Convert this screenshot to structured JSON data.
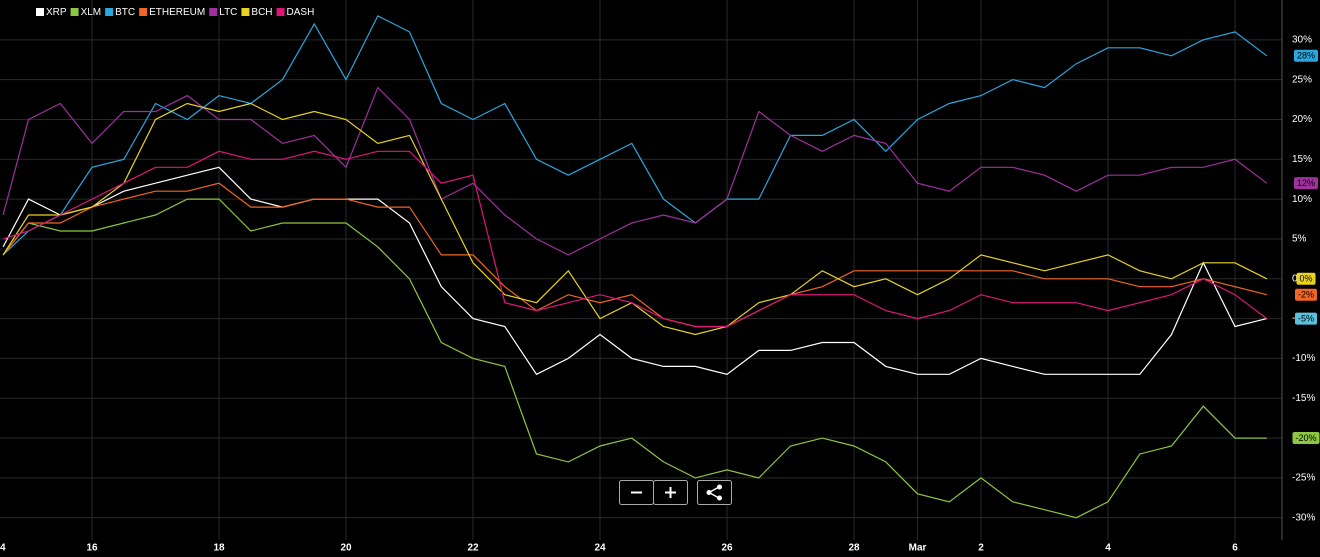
{
  "chart_data": {
    "type": "line",
    "x": [
      14.6,
      15,
      15.5,
      16,
      16.5,
      17,
      17.5,
      18,
      18.5,
      19,
      19.5,
      20,
      20.5,
      21,
      21.5,
      22,
      22.5,
      23,
      23.5,
      24,
      24.5,
      25,
      25.5,
      26,
      26.5,
      27,
      27.5,
      28,
      28.5,
      29,
      29.5,
      30,
      30.5,
      31,
      31.5,
      32,
      32.5,
      33,
      33.5,
      34,
      34.5
    ],
    "series": [
      {
        "name": "XRP",
        "color": "#ffffff",
        "end_label": "-5%",
        "end_label_color": "#5bc0de",
        "values": [
          4,
          10,
          8,
          9,
          11,
          12,
          13,
          14,
          10,
          9,
          10,
          10,
          10,
          7,
          -1,
          -5,
          -6,
          -12,
          -10,
          -7,
          -10,
          -11,
          -11,
          -12,
          -9,
          -9,
          -8,
          -8,
          -11,
          -12,
          -12,
          -10,
          -11,
          -12,
          -12,
          -12,
          -12,
          -7,
          2,
          -6,
          -5
        ]
      },
      {
        "name": "XLM",
        "color": "#8dc63f",
        "end_label": "-20%",
        "end_label_color": "#8dc63f",
        "values": [
          3,
          7,
          6,
          6,
          7,
          8,
          10,
          10,
          6,
          7,
          7,
          7,
          4,
          0,
          -8,
          -10,
          -11,
          -22,
          -23,
          -21,
          -20,
          -23,
          -25,
          -24,
          -25,
          -21,
          -20,
          -21,
          -23,
          -27,
          -28,
          -25,
          -28,
          -29,
          -30,
          -28,
          -22,
          -21,
          -16,
          -20,
          -20
        ]
      },
      {
        "name": "BTC",
        "color": "#29a8e0",
        "end_label": "28%",
        "end_label_color": "#29a8e0",
        "values": [
          3,
          6,
          8,
          14,
          15,
          22,
          20,
          23,
          22,
          25,
          32,
          25,
          33,
          31,
          22,
          20,
          22,
          15,
          13,
          15,
          17,
          10,
          7,
          10,
          10,
          18,
          18,
          20,
          16,
          20,
          22,
          23,
          25,
          24,
          27,
          29,
          29,
          28,
          30,
          31,
          28
        ]
      },
      {
        "name": "ETHEREUM",
        "color": "#f26522",
        "end_label": "-2%",
        "end_label_color": "#f26522",
        "values": [
          3,
          7,
          7,
          9,
          10,
          11,
          11,
          12,
          9,
          9,
          10,
          10,
          9,
          9,
          3,
          3,
          -1,
          -4,
          -2,
          -3,
          -2,
          -5,
          -6,
          -6,
          -4,
          -2,
          -1,
          1,
          1,
          1,
          1,
          1,
          1,
          0,
          0,
          0,
          -1,
          -1,
          0,
          -1,
          -2
        ]
      },
      {
        "name": "LTC",
        "color": "#a0309e",
        "end_label": "12%",
        "end_label_color": "#a0309e",
        "values": [
          8,
          20,
          22,
          17,
          21,
          21,
          23,
          20,
          20,
          17,
          18,
          14,
          24,
          20,
          10,
          12,
          8,
          5,
          3,
          5,
          7,
          8,
          7,
          10,
          21,
          18,
          16,
          18,
          17,
          12,
          11,
          14,
          14,
          13,
          11,
          13,
          13,
          14,
          14,
          15,
          12
        ]
      },
      {
        "name": "BCH",
        "color": "#e8d420",
        "end_label": "0%",
        "end_label_color": "#e8d420",
        "values": [
          3,
          8,
          8,
          9,
          12,
          20,
          22,
          21,
          22,
          20,
          21,
          20,
          17,
          18,
          10,
          2,
          -2,
          -3,
          1,
          -5,
          -3,
          -6,
          -7,
          -6,
          -3,
          -2,
          1,
          -1,
          0,
          -2,
          0,
          3,
          2,
          1,
          2,
          3,
          1,
          0,
          2,
          2,
          0
        ]
      },
      {
        "name": "DASH",
        "color": "#e0157a",
        "values": [
          5,
          6,
          8,
          10,
          12,
          14,
          14,
          16,
          15,
          15,
          16,
          15,
          16,
          16,
          12,
          13,
          -3,
          -4,
          -3,
          -2,
          -3,
          -5,
          -6,
          -6,
          -4,
          -2,
          -2,
          -2,
          -4,
          -5,
          -4,
          -2,
          -3,
          -3,
          -3,
          -4,
          -3,
          -2,
          0,
          -2,
          -5
        ]
      }
    ],
    "xlim": [
      14.551,
      34.74
    ],
    "xticks": [
      {
        "value": 14,
        "label": "4"
      },
      16,
      18,
      20,
      22,
      24,
      26,
      28,
      {
        "value": 29,
        "label": "Mar"
      },
      {
        "value": 30,
        "label": "2"
      },
      {
        "value": 32,
        "label": "4"
      },
      {
        "value": 34,
        "label": "6"
      }
    ],
    "ylim": [
      -32.8,
      35
    ],
    "yticks": [
      {
        "value": -30,
        "label": "-30%"
      },
      {
        "value": -25,
        "label": "-25%"
      },
      {
        "value": -20,
        "label": "-20%"
      },
      {
        "value": -15,
        "label": "-15%"
      },
      {
        "value": -10,
        "label": "-10%"
      },
      {
        "value": -5,
        "label": "-5%"
      },
      {
        "value": 0,
        "label": "0%"
      },
      {
        "value": 5,
        "label": "5%"
      },
      {
        "value": 10,
        "label": "10%"
      },
      {
        "value": 15,
        "label": "15%"
      },
      {
        "value": 20,
        "label": "20%"
      },
      {
        "value": 25,
        "label": "25%"
      },
      {
        "value": 30,
        "label": "30%"
      }
    ],
    "grid": true,
    "legend": "top-left"
  }
}
